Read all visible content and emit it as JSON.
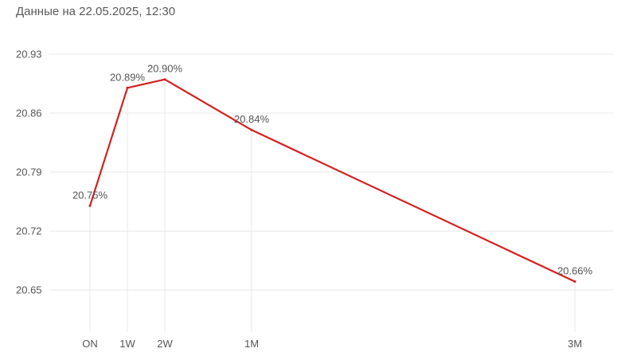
{
  "caption": "Данные на 22.05.2025, 12:30",
  "chart_data": {
    "type": "line",
    "categories": [
      "ON",
      "1W",
      "2W",
      "1M",
      "3M"
    ],
    "x": [
      0,
      7,
      14,
      30,
      90
    ],
    "values": [
      20.75,
      20.89,
      20.9,
      20.84,
      20.66
    ],
    "data_labels": [
      "20.75%",
      "20.89%",
      "20.90%",
      "20.84%",
      "20.66%"
    ],
    "yticks": [
      20.65,
      20.72,
      20.79,
      20.86,
      20.93
    ],
    "ytick_labels": [
      "20.65",
      "20.72",
      "20.79",
      "20.86",
      "20.93"
    ],
    "ylim": [
      20.6,
      20.93
    ],
    "xlabel": "",
    "ylabel": "",
    "title": "",
    "grid": true,
    "line_color": "#d42020",
    "grid_color": "#e8e8e8"
  }
}
